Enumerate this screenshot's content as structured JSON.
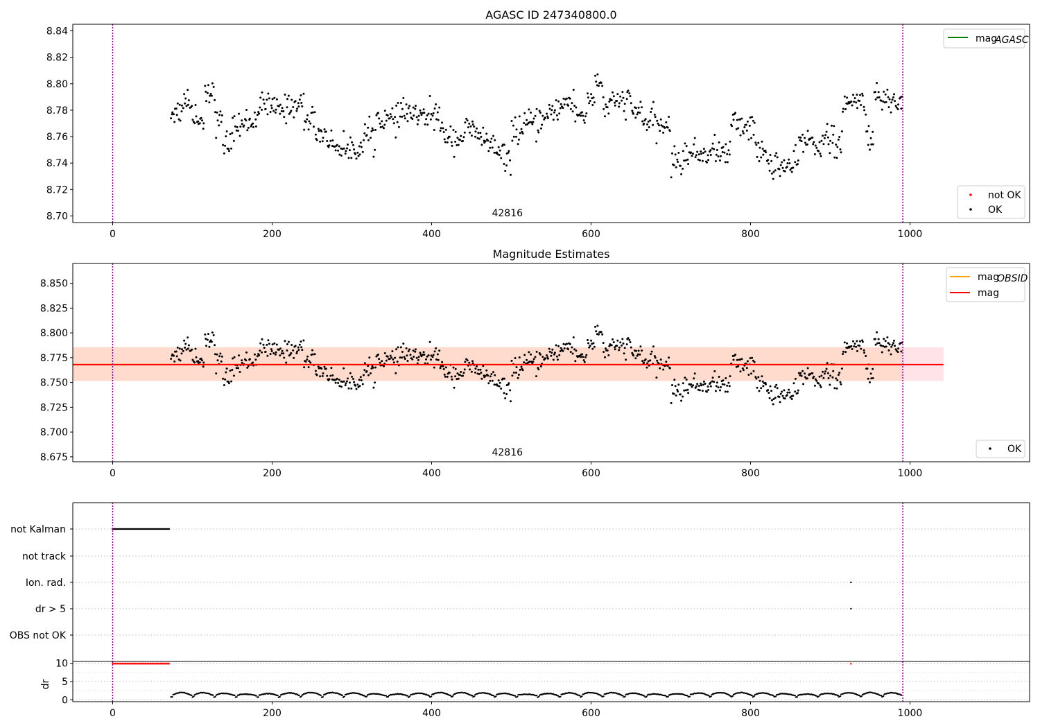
{
  "figure": {
    "title_top": "AGASC ID 247340800.0",
    "title_mid": "Magnitude Estimates",
    "obs_label": "42816"
  },
  "chart_data": [
    {
      "type": "scatter",
      "title": "AGASC ID 247340800.0",
      "xlim": [
        -50,
        1150
      ],
      "ylim": [
        8.695,
        8.845
      ],
      "xticks": [
        "0",
        "200",
        "400",
        "600",
        "800",
        "1000"
      ],
      "yticks": [
        "8.70",
        "8.72",
        "8.74",
        "8.76",
        "8.78",
        "8.80",
        "8.82",
        "8.84"
      ],
      "legend_upper": [
        "mag_AGASC"
      ],
      "legend_lower": [
        "not OK",
        "OK"
      ],
      "legend_upper_placement": "top-right",
      "legend_lower_placement": "bottom-right",
      "vlines_x": [
        0,
        991
      ],
      "annotation": "42816",
      "grid": false,
      "series": [
        {
          "name": "OK",
          "color": "#000000",
          "segments": [
            [
              73,
              88,
              8.779
            ],
            [
              88,
              96,
              8.789
            ],
            [
              96,
              106,
              8.779
            ],
            [
              106,
              115,
              8.772
            ],
            [
              115,
              128,
              8.795
            ],
            [
              128,
              138,
              8.771
            ],
            [
              138,
              150,
              8.755
            ],
            [
              150,
              165,
              8.768
            ],
            [
              165,
              180,
              8.772
            ],
            [
              180,
              200,
              8.783
            ],
            [
              200,
              220,
              8.781
            ],
            [
              220,
              240,
              8.784
            ],
            [
              240,
              255,
              8.773
            ],
            [
              255,
              270,
              8.762
            ],
            [
              270,
              285,
              8.754
            ],
            [
              285,
              300,
              8.75
            ],
            [
              300,
              315,
              8.752
            ],
            [
              315,
              330,
              8.762
            ],
            [
              330,
              345,
              8.774
            ],
            [
              345,
              360,
              8.772
            ],
            [
              360,
              380,
              8.778
            ],
            [
              380,
              395,
              8.774
            ],
            [
              395,
              410,
              8.777
            ],
            [
              410,
              425,
              8.762
            ],
            [
              425,
              440,
              8.759
            ],
            [
              440,
              455,
              8.765
            ],
            [
              455,
              470,
              8.759
            ],
            [
              470,
              480,
              8.754
            ],
            [
              480,
              490,
              8.746
            ],
            [
              490,
              500,
              8.743
            ],
            [
              500,
              515,
              8.765
            ],
            [
              515,
              535,
              8.769
            ],
            [
              535,
              550,
              8.773
            ],
            [
              550,
              565,
              8.782
            ],
            [
              565,
              580,
              8.786
            ],
            [
              580,
              595,
              8.776
            ],
            [
              595,
              605,
              8.79
            ],
            [
              605,
              615,
              8.801
            ],
            [
              615,
              630,
              8.783
            ],
            [
              630,
              650,
              8.787
            ],
            [
              650,
              665,
              8.779
            ],
            [
              665,
              680,
              8.771
            ],
            [
              680,
              700,
              8.768
            ],
            [
              700,
              715,
              8.741
            ],
            [
              715,
              730,
              8.747
            ],
            [
              730,
              745,
              8.747
            ],
            [
              745,
              760,
              8.749
            ],
            [
              760,
              775,
              8.748
            ],
            [
              775,
              790,
              8.77
            ],
            [
              790,
              805,
              8.768
            ],
            [
              805,
              820,
              8.748
            ],
            [
              820,
              835,
              8.74
            ],
            [
              835,
              850,
              8.737
            ],
            [
              850,
              860,
              8.738
            ],
            [
              860,
              875,
              8.757
            ],
            [
              875,
              890,
              8.755
            ],
            [
              890,
              905,
              8.758
            ],
            [
              905,
              915,
              8.753
            ],
            [
              915,
              930,
              8.784
            ],
            [
              930,
              945,
              8.787
            ],
            [
              945,
              955,
              8.76
            ],
            [
              955,
              970,
              8.788
            ],
            [
              970,
              990,
              8.787
            ]
          ],
          "noise": 0.009,
          "n_points": 840
        }
      ],
      "hline": null
    },
    {
      "type": "scatter",
      "title": "Magnitude Estimates",
      "xlim": [
        -50,
        1150
      ],
      "ylim": [
        8.67,
        8.87
      ],
      "xticks": [
        "0",
        "200",
        "400",
        "600",
        "800",
        "1000"
      ],
      "yticks": [
        "8.675",
        "8.700",
        "8.725",
        "8.750",
        "8.775",
        "8.800",
        "8.825",
        "8.850"
      ],
      "legend_upper": [
        "mag_OBSID",
        "mag"
      ],
      "legend_lower": [
        "OK"
      ],
      "legend_upper_placement": "top-right",
      "legend_lower_placement": "bottom-right",
      "vlines_x": [
        0,
        991
      ],
      "annotation": "42816",
      "grid": false,
      "mag": 8.768,
      "mag_band": [
        8.7515,
        8.7855
      ],
      "mag_band_xlim": [
        -50,
        1042
      ],
      "mag_obsid": 8.768,
      "mag_obsid_band": [
        8.7515,
        8.7855
      ],
      "mag_obsid_band_xlim": [
        -50,
        991
      ]
    },
    {
      "type": "scatter",
      "title": "",
      "xlim": [
        -50,
        1150
      ],
      "xticks": [
        "0",
        "200",
        "400",
        "600",
        "800",
        "1000"
      ],
      "flag_labels": [
        "not Kalman",
        "not track",
        "Ion. rad.",
        "dr > 5",
        "OBS not OK"
      ],
      "not_kalman_x": [
        0,
        72
      ],
      "ion_rad_x": [
        926
      ],
      "dr_gt_5_x": [
        926
      ],
      "dr": {
        "ylabel": "dr",
        "ylim": [
          -0.5,
          10.5
        ],
        "yticks": [
          "0",
          "5",
          "10"
        ],
        "clipped_value": 10,
        "clipped_red_x": [
          [
            0,
            72
          ],
          [
            926,
            926
          ]
        ],
        "typical_range": [
          0.3,
          2.2
        ]
      },
      "vlines_x": [
        0,
        991
      ]
    }
  ],
  "colors": {
    "ok_points": "#000000",
    "not_ok_points": "#ff0000",
    "mag_agasc": "#008000",
    "mag_obsid": "#ffa500",
    "mag": "#ff0000",
    "mag_band": "#ffc0cb",
    "mag_obsid_band": "#ffd6b8",
    "vline": "#800080"
  },
  "legend": {
    "mag_agasc_main": "mag",
    "mag_agasc_sub": "AGASC",
    "mag_obsid_main": "mag",
    "mag_obsid_sub": "OBSID",
    "mag_main": "mag",
    "not_ok": "not OK",
    "ok": "OK"
  }
}
